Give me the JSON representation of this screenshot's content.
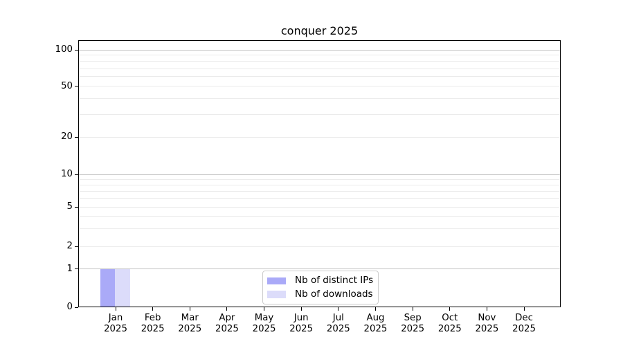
{
  "chart_data": {
    "type": "bar",
    "title": "conquer 2025",
    "x_axis": {
      "months": [
        "Jan",
        "Feb",
        "Mar",
        "Apr",
        "May",
        "Jun",
        "Jul",
        "Aug",
        "Sep",
        "Oct",
        "Nov",
        "Dec"
      ],
      "year": "2025"
    },
    "y_axis": {
      "scale": "symlog",
      "labeled_ticks": [
        0,
        1,
        2,
        5,
        10,
        20,
        50,
        100
      ],
      "grid_major_values": [
        1,
        10,
        100
      ],
      "grid_minor_values": [
        2,
        3,
        4,
        5,
        6,
        7,
        8,
        9,
        20,
        30,
        40,
        50,
        60,
        70,
        80,
        90
      ],
      "ylim": [
        0,
        120
      ]
    },
    "series": [
      {
        "name": "Nb of distinct IPs",
        "color": "#aaaaf8",
        "values": [
          1,
          0,
          0,
          0,
          0,
          0,
          0,
          0,
          0,
          0,
          0,
          0
        ]
      },
      {
        "name": "Nb of downloads",
        "color": "#dcdcfa",
        "values": [
          1,
          0,
          0,
          0,
          0,
          0,
          0,
          0,
          0,
          0,
          0,
          0
        ]
      }
    ],
    "legend_position": "bottom-center",
    "grid": "horizontal, major and minor",
    "colors": {
      "grid_major": "#c3c3c3",
      "grid_minor": "#ebebeb",
      "axis": "#000000",
      "text": "#000000"
    }
  }
}
